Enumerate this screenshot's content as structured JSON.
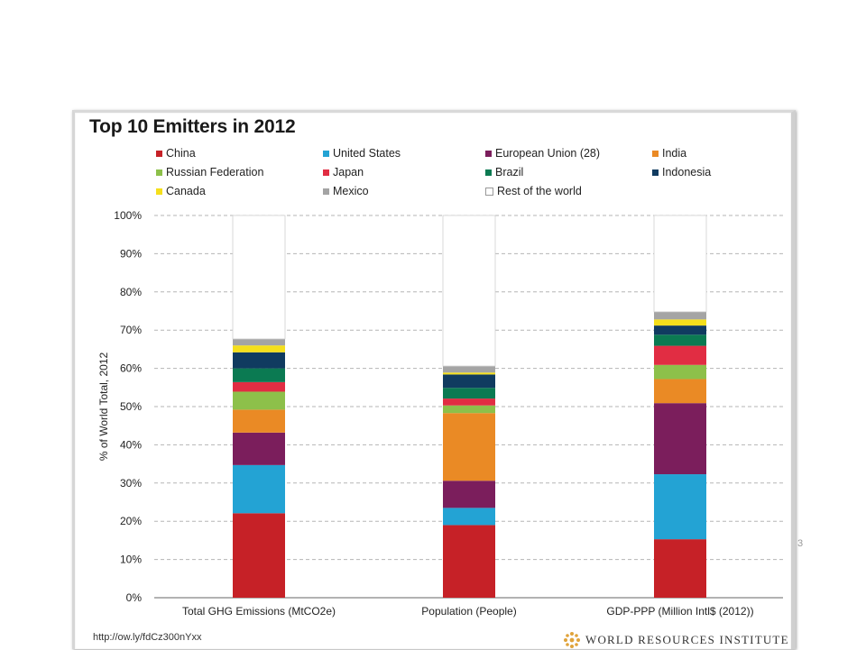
{
  "side_mark": "3",
  "chart_data": {
    "type": "bar",
    "stacked": true,
    "title": "Top 10 Emitters in 2012",
    "ylabel": "% of World Total, 2012",
    "ylim": [
      0,
      100
    ],
    "yticks": [
      "0%",
      "10%",
      "20%",
      "30%",
      "40%",
      "50%",
      "60%",
      "70%",
      "80%",
      "90%",
      "100%"
    ],
    "categories": [
      "Total GHG Emissions (MtCO2e)",
      "Population (People)",
      "GDP-PPP (Million Intl$ (2012))"
    ],
    "grid": true,
    "legend_position": "top",
    "series": [
      {
        "name": "China",
        "color": "#c62127",
        "values": [
          22.1,
          19.0,
          15.3
        ]
      },
      {
        "name": "United States",
        "color": "#23a3d4",
        "values": [
          12.6,
          4.5,
          17.0
        ]
      },
      {
        "name": "European Union (28)",
        "color": "#7b1e5c",
        "values": [
          8.5,
          7.1,
          18.6
        ]
      },
      {
        "name": "India",
        "color": "#ea8a25",
        "values": [
          6.0,
          17.7,
          6.3
        ]
      },
      {
        "name": "Russian Federation",
        "color": "#8dc04a",
        "values": [
          4.7,
          2.0,
          3.7
        ]
      },
      {
        "name": "Japan",
        "color": "#e12d43",
        "values": [
          2.5,
          1.8,
          5.0
        ]
      },
      {
        "name": "Brazil",
        "color": "#0b7a52",
        "values": [
          3.6,
          2.8,
          2.9
        ]
      },
      {
        "name": "Indonesia",
        "color": "#103b60",
        "values": [
          4.2,
          3.5,
          2.4
        ]
      },
      {
        "name": "Canada",
        "color": "#f5df1c",
        "values": [
          1.8,
          0.5,
          1.6
        ]
      },
      {
        "name": "Mexico",
        "color": "#a4a4a4",
        "values": [
          1.7,
          1.7,
          2.0
        ]
      },
      {
        "name": "Rest of the world",
        "color": "#ffffff",
        "values": [
          32.3,
          39.4,
          25.2
        ]
      }
    ]
  },
  "footer": {
    "source_url": "http://ow.ly/fdCz300nYxx",
    "organization": "WORLD RESOURCES INSTITUTE"
  }
}
